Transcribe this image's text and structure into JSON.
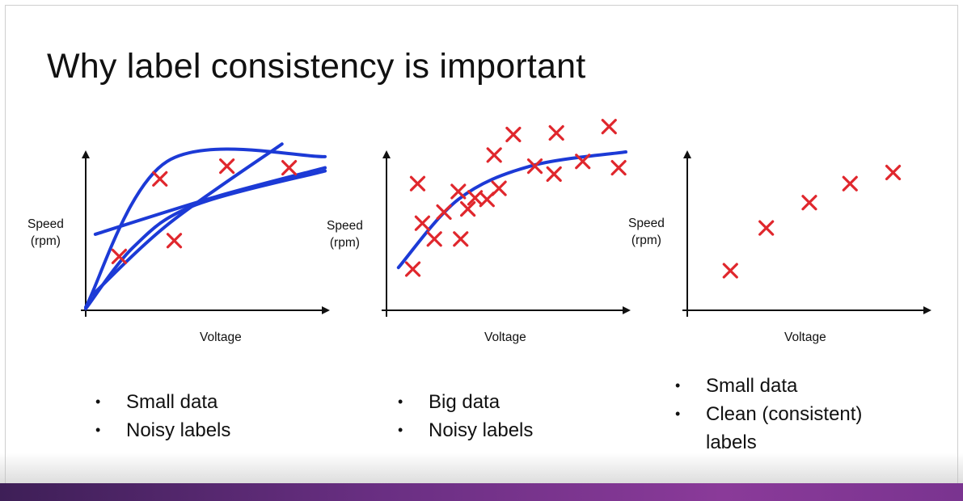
{
  "slide": {
    "title": "Why label consistency is important"
  },
  "colors": {
    "marker": "#e0272d",
    "fit_line": "#1c3ad6",
    "axis": "#111111",
    "bottom_bar": "#6a2f83"
  },
  "chart_data": [
    {
      "type": "scatter",
      "xlabel": "Voltage",
      "ylabel": "Speed (rpm)",
      "ylabel_lines": [
        "Speed",
        "(rpm)"
      ],
      "grid": false,
      "marker": "x",
      "points": [
        [
          0.31,
          0.83
        ],
        [
          0.59,
          0.91
        ],
        [
          0.85,
          0.9
        ],
        [
          0.37,
          0.44
        ],
        [
          0.14,
          0.34
        ]
      ],
      "fit_curves": [
        [
          [
            0.0,
            0.02
          ],
          [
            0.34,
            0.94
          ],
          [
            1.0,
            0.97
          ]
        ],
        [
          [
            0.04,
            0.48
          ],
          [
            0.55,
            0.72
          ],
          [
            1.0,
            0.9
          ]
        ],
        [
          [
            0.0,
            0.01
          ],
          [
            0.2,
            0.4
          ],
          [
            0.45,
            0.66
          ],
          [
            1.0,
            0.88
          ]
        ],
        [
          [
            0.03,
            0.1
          ],
          [
            0.35,
            0.55
          ],
          [
            0.82,
            1.05
          ]
        ]
      ],
      "bullets": [
        "Small data",
        "Noisy labels"
      ]
    },
    {
      "type": "scatter",
      "xlabel": "Voltage",
      "ylabel": "Speed (rpm)",
      "ylabel_lines": [
        "Speed",
        "(rpm)"
      ],
      "grid": false,
      "marker": "x",
      "points": [
        [
          0.11,
          0.26
        ],
        [
          0.15,
          0.55
        ],
        [
          0.2,
          0.45
        ],
        [
          0.13,
          0.8
        ],
        [
          0.24,
          0.62
        ],
        [
          0.3,
          0.75
        ],
        [
          0.34,
          0.64
        ],
        [
          0.37,
          0.71
        ],
        [
          0.31,
          0.45
        ],
        [
          0.42,
          0.7
        ],
        [
          0.47,
          0.77
        ],
        [
          0.45,
          0.98
        ],
        [
          0.53,
          1.11
        ],
        [
          0.62,
          0.91
        ],
        [
          0.7,
          0.86
        ],
        [
          0.71,
          1.12
        ],
        [
          0.82,
          0.94
        ],
        [
          0.93,
          1.16
        ],
        [
          0.97,
          0.9
        ]
      ],
      "fit_curve": [
        [
          0.05,
          0.27
        ],
        [
          0.3,
          0.7
        ],
        [
          0.6,
          0.91
        ],
        [
          1.0,
          1.0
        ]
      ],
      "bullets": [
        "Big data",
        "Noisy labels"
      ]
    },
    {
      "type": "scatter",
      "xlabel": "Voltage",
      "ylabel": "Speed (rpm)",
      "ylabel_lines": [
        "Speed",
        "(rpm)"
      ],
      "grid": false,
      "marker": "x",
      "points": [
        [
          0.18,
          0.25
        ],
        [
          0.33,
          0.52
        ],
        [
          0.51,
          0.68
        ],
        [
          0.68,
          0.8
        ],
        [
          0.86,
          0.87
        ]
      ],
      "bullets": [
        "Small data",
        "Clean (consistent) labels"
      ]
    }
  ]
}
